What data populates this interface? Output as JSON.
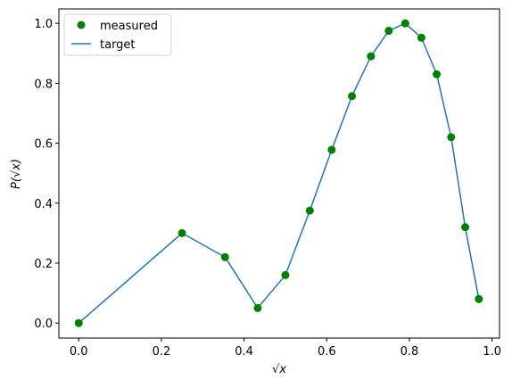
{
  "chart_data": {
    "type": "line",
    "xlabel": "√x",
    "ylabel": "P(√x)",
    "x": [
      0,
      0.25,
      0.354,
      0.433,
      0.5,
      0.559,
      0.612,
      0.661,
      0.707,
      0.75,
      0.79,
      0.829,
      0.866,
      0.901,
      0.935,
      0.968
    ],
    "series": [
      {
        "name": "measured",
        "style": "scatter",
        "color": "#008000",
        "values": [
          0,
          0.3,
          0.22,
          0.05,
          0.16,
          0.375,
          0.578,
          0.757,
          0.89,
          0.975,
          1.0,
          0.952,
          0.83,
          0.62,
          0.32,
          0.08
        ]
      },
      {
        "name": "target",
        "style": "line",
        "color": "#1f77b4",
        "values": [
          0,
          0.3,
          0.22,
          0.05,
          0.16,
          0.375,
          0.578,
          0.757,
          0.89,
          0.975,
          1.0,
          0.952,
          0.83,
          0.62,
          0.32,
          0.08
        ]
      }
    ],
    "xlim": [
      -0.048,
      1.018
    ],
    "ylim": [
      -0.05,
      1.048
    ],
    "xticks": [
      {
        "value": 0,
        "label": "0.0"
      },
      0.2,
      0.4,
      0.6,
      0.8,
      {
        "value": 1,
        "label": "1.0"
      }
    ],
    "yticks": [
      {
        "value": 0,
        "label": "0.0"
      },
      0.2,
      0.4,
      0.6,
      0.8,
      {
        "value": 1,
        "label": "1.0"
      }
    ],
    "grid": false,
    "legend": "upper left"
  }
}
